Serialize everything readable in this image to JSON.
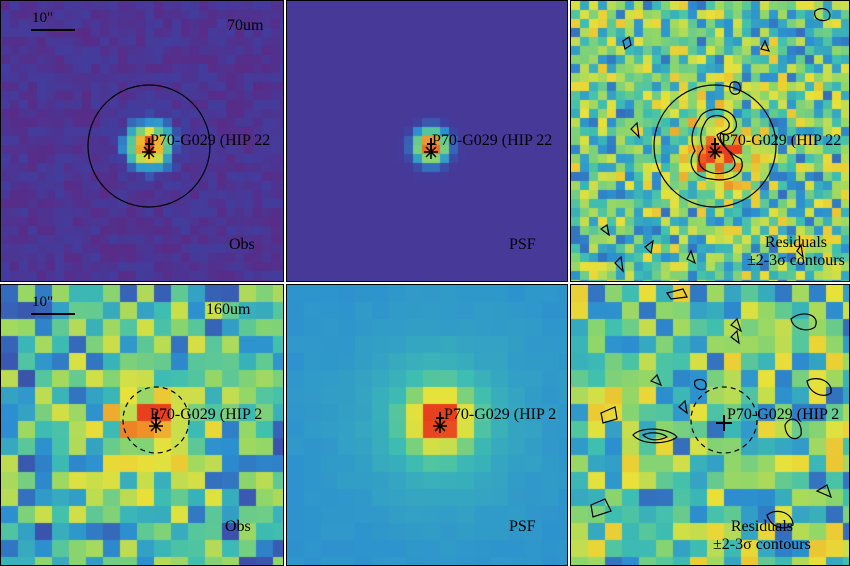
{
  "colormap": [
    "#5b2a86",
    "#3f3fa0",
    "#2c8fd0",
    "#3fbfb0",
    "#8fd66a",
    "#e8e23a",
    "#f0a02a",
    "#e8401e"
  ],
  "marker": "star-icon",
  "rows": [
    {
      "band": "70um",
      "scalebar": "10\"",
      "panels": [
        {
          "kind": "obs",
          "source_label": "P70-G029 (HIP 22",
          "caption": "Obs"
        },
        {
          "kind": "psf",
          "source_label": "P70-G029 (HIP 22",
          "caption": "PSF"
        },
        {
          "kind": "resid",
          "source_label": "P70-G029 (HIP 22",
          "caption": "Residuals",
          "caption2": "±2-3σ contours"
        }
      ]
    },
    {
      "band": "160um",
      "scalebar": "10\"",
      "panels": [
        {
          "kind": "obs",
          "source_label": "P70-G029 (HIP 2",
          "caption": "Obs"
        },
        {
          "kind": "psf",
          "source_label": "P70-G029 (HIP 2",
          "caption": "PSF"
        },
        {
          "kind": "resid",
          "source_label": "P70-G029 (HIP 2",
          "caption": "Residuals",
          "caption2": "±2-3σ contours"
        }
      ]
    }
  ]
}
